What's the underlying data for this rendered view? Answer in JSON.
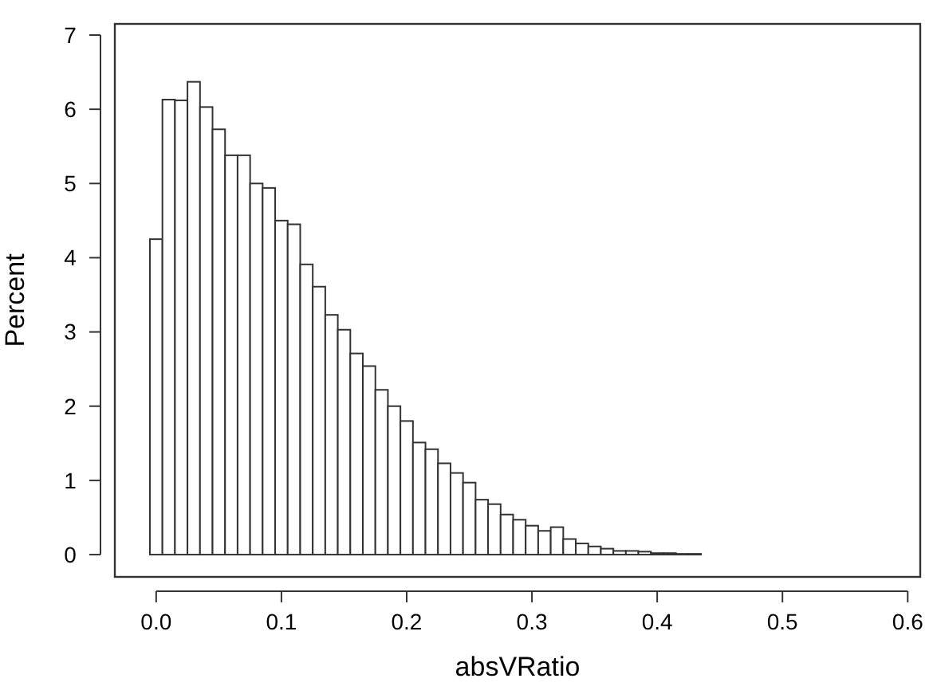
{
  "chart_data": {
    "type": "histogram",
    "xlabel": "absVRatio",
    "ylabel": "Percent",
    "bins": [
      -0.005,
      0.005,
      0.015,
      0.025,
      0.035,
      0.045,
      0.055,
      0.065,
      0.075,
      0.085,
      0.095,
      0.105,
      0.115,
      0.125,
      0.135,
      0.145,
      0.155,
      0.165,
      0.175,
      0.185,
      0.195,
      0.205,
      0.215,
      0.225,
      0.235,
      0.245,
      0.255,
      0.265,
      0.275,
      0.285,
      0.295,
      0.305,
      0.315,
      0.325,
      0.335,
      0.345,
      0.355,
      0.365,
      0.375,
      0.385,
      0.395,
      0.405,
      0.415,
      0.425,
      0.435,
      0.445,
      0.455,
      0.465,
      0.475,
      0.485,
      0.495,
      0.505,
      0.515,
      0.525,
      0.535,
      0.545,
      0.555,
      0.565
    ],
    "values": [
      4.25,
      6.13,
      6.12,
      6.37,
      6.03,
      5.73,
      5.38,
      5.38,
      5.0,
      4.94,
      4.5,
      4.45,
      3.91,
      3.61,
      3.23,
      3.03,
      2.71,
      2.54,
      2.22,
      2.0,
      1.8,
      1.51,
      1.42,
      1.23,
      1.1,
      0.97,
      0.74,
      0.68,
      0.54,
      0.47,
      0.39,
      0.32,
      0.37,
      0.21,
      0.15,
      0.11,
      0.08,
      0.05,
      0.05,
      0.04,
      0.02,
      0.02,
      0.01,
      0.01,
      0,
      0,
      0,
      0,
      0,
      0,
      0,
      0,
      0,
      0,
      0,
      0,
      0
    ],
    "color": "#ffffff",
    "xlim": [
      -0.033,
      0.61
    ],
    "xticks": [
      {
        "value": 0,
        "label": "0.0"
      },
      0.1,
      0.2,
      0.3,
      0.4,
      0.5,
      0.6
    ],
    "ylim": [
      -0.3,
      7.15
    ],
    "yticks": [
      0,
      1,
      2,
      3,
      4,
      5,
      6,
      7
    ],
    "grid": false
  }
}
